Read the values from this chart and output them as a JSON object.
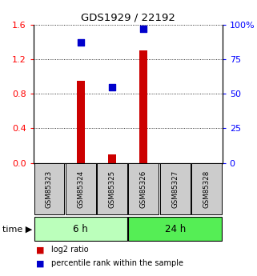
{
  "title": "GDS1929 / 22192",
  "samples": [
    "GSM85323",
    "GSM85324",
    "GSM85325",
    "GSM85326",
    "GSM85327",
    "GSM85328"
  ],
  "log2_ratio": [
    0.0,
    0.95,
    0.1,
    1.3,
    0.0,
    0.0
  ],
  "percentile_rank": [
    null,
    87.0,
    55.0,
    97.0,
    null,
    null
  ],
  "bar_color": "#cc0000",
  "dot_color": "#0000cc",
  "left_ylim": [
    0,
    1.6
  ],
  "right_ylim": [
    0,
    100
  ],
  "left_yticks": [
    0,
    0.4,
    0.8,
    1.2,
    1.6
  ],
  "right_yticks": [
    0,
    25,
    50,
    75,
    100
  ],
  "right_yticklabels": [
    "0",
    "25",
    "50",
    "75",
    "100%"
  ],
  "group_6h_color": "#bbffbb",
  "group_24h_color": "#55ee55",
  "bg_color": "#ffffff",
  "sample_box_color": "#cccccc",
  "bar_width": 0.25,
  "dot_size": 30
}
